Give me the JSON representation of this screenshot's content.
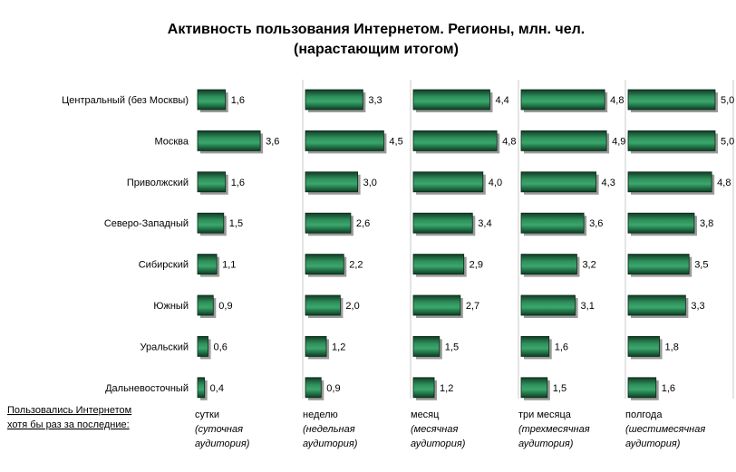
{
  "title_line1": "Активность пользования Интернетом. Регионы, млн. чел.",
  "title_line2": "(нарастающим итогом)",
  "note_line1": "Пользовались Интернетом",
  "note_line2": "хотя бы раз за последние:",
  "colors": {
    "bar_dark": "#0b3d22",
    "bar_light": "#3aa76d",
    "separator": "#c8c8c8"
  },
  "chart_data": {
    "type": "bar",
    "orientation": "horizontal",
    "categories": [
      "Центральный (без Москвы)",
      "Москва",
      "Приволжский",
      "Северо-Западный",
      "Сибирский",
      "Южный",
      "Уральский",
      "Дальневосточный"
    ],
    "series": [
      {
        "period": "сутки",
        "aud1": "(суточная",
        "aud2": "аудитория)",
        "values": [
          1.6,
          3.6,
          1.6,
          1.5,
          1.1,
          0.9,
          0.6,
          0.4
        ],
        "labels": [
          "1,6",
          "3,6",
          "1,6",
          "1,5",
          "1,1",
          "0,9",
          "0,6",
          "0,4"
        ]
      },
      {
        "period": "неделю",
        "aud1": "(недельная",
        "aud2": "аудитория)",
        "values": [
          3.3,
          4.5,
          3.0,
          2.6,
          2.2,
          2.0,
          1.2,
          0.9
        ],
        "labels": [
          "3,3",
          "4,5",
          "3,0",
          "2,6",
          "2,2",
          "2,0",
          "1,2",
          "0,9"
        ]
      },
      {
        "period": "месяц",
        "aud1": "(месячная",
        "aud2": "аудитория)",
        "values": [
          4.4,
          4.8,
          4.0,
          3.4,
          2.9,
          2.7,
          1.5,
          1.2
        ],
        "labels": [
          "4,4",
          "4,8",
          "4,0",
          "3,4",
          "2,9",
          "2,7",
          "1,5",
          "1,2"
        ]
      },
      {
        "period": "три месяца",
        "aud1": "(трехмесячная",
        "aud2": "аудитория)",
        "values": [
          4.8,
          4.9,
          4.3,
          3.6,
          3.2,
          3.1,
          1.6,
          1.5
        ],
        "labels": [
          "4,8",
          "4,9",
          "4,3",
          "3,6",
          "3,2",
          "3,1",
          "1,6",
          "1,5"
        ]
      },
      {
        "period": "полгода",
        "aud1": "(шестимесячная",
        "aud2": "аудитория)",
        "values": [
          5.0,
          5.0,
          4.8,
          3.8,
          3.5,
          3.3,
          1.8,
          1.6
        ],
        "labels": [
          "5,0",
          "5,0",
          "4,8",
          "3,8",
          "3,5",
          "3,3",
          "1,8",
          "1,6"
        ]
      }
    ],
    "xlim": [
      0,
      5.0
    ],
    "grid": false,
    "legend": "none"
  }
}
